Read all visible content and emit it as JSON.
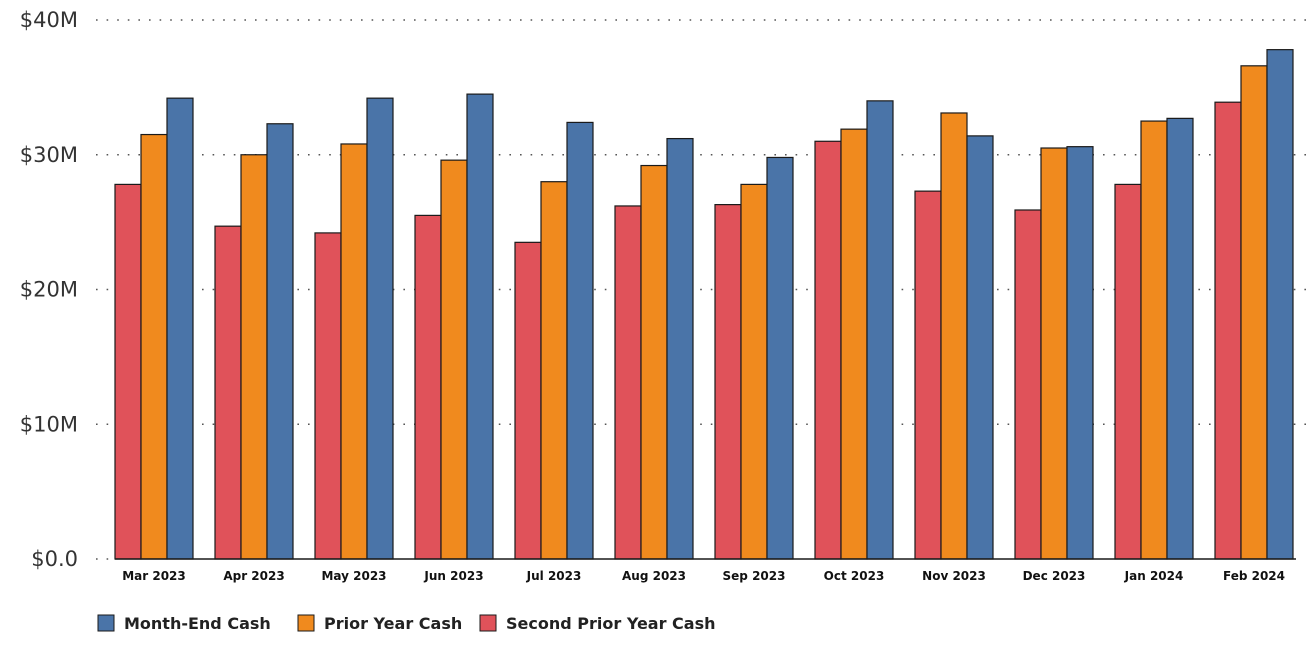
{
  "chart_data": {
    "type": "bar",
    "title": "",
    "xlabel": "",
    "ylabel": "",
    "ylim": [
      0,
      40000000
    ],
    "y_ticks": [
      {
        "value": 0,
        "label": "$0.0"
      },
      {
        "value": 10000000,
        "label": "$10M"
      },
      {
        "value": 20000000,
        "label": "$20M"
      },
      {
        "value": 30000000,
        "label": "$30M"
      },
      {
        "value": 40000000,
        "label": "$40M"
      }
    ],
    "grid": true,
    "legend_position": "bottom-left",
    "categories": [
      "Mar 2023",
      "Apr 2023",
      "May 2023",
      "Jun 2023",
      "Jul 2023",
      "Aug 2023",
      "Sep 2023",
      "Oct 2023",
      "Nov 2023",
      "Dec 2023",
      "Jan 2024",
      "Feb 2024"
    ],
    "series": [
      {
        "name": "Month-End Cash",
        "color": "#4a74a8",
        "values": [
          34200000,
          32300000,
          34200000,
          34500000,
          32400000,
          31200000,
          29800000,
          34000000,
          31400000,
          30600000,
          32700000,
          37800000
        ]
      },
      {
        "name": "Prior Year Cash",
        "color": "#f08a1e",
        "values": [
          31500000,
          30000000,
          30800000,
          29600000,
          28000000,
          29200000,
          27800000,
          31900000,
          33100000,
          30500000,
          32500000,
          36600000
        ]
      },
      {
        "name": "Second Prior Year Cash",
        "color": "#e0525a",
        "values": [
          27800000,
          24700000,
          24200000,
          25500000,
          23500000,
          26200000,
          26300000,
          31000000,
          27300000,
          25900000,
          27800000,
          33900000
        ]
      }
    ],
    "bar_draw_order": [
      "Second Prior Year Cash",
      "Prior Year Cash",
      "Month-End Cash"
    ],
    "legend_order": [
      "Month-End Cash",
      "Prior Year Cash",
      "Second Prior Year Cash"
    ]
  }
}
